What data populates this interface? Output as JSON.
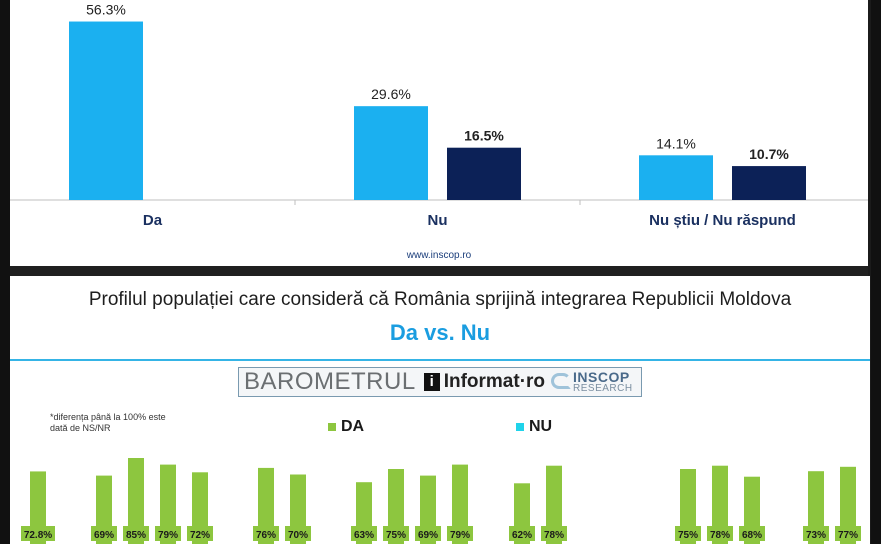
{
  "top_panel": {
    "source": "www.inscop.ro"
  },
  "bottom_panel": {
    "title": "Profilul populației care consideră că România sprijină integrarea Republicii Moldova",
    "subtitle": "Da vs. Nu",
    "banner": {
      "barometrul": "BAROMETRUL",
      "informat_icon": "i",
      "informat": "Informat·ro",
      "inscop_name": "INSCOP",
      "inscop_sub": "RESEARCH"
    },
    "note": "*diferența până la 100% este dată de NS/NR",
    "legend": [
      {
        "label": "DA",
        "color": "#8dc63f"
      },
      {
        "label": "NU",
        "color": "#1fd3ea"
      }
    ]
  },
  "colors": {
    "bar_light": "#1bb0f0",
    "bar_dark": "#0c2157",
    "bar_green": "#8dc63f",
    "label_bg": "#8dc63f"
  },
  "chart_data": [
    {
      "type": "bar",
      "categories": [
        "Da",
        "Nu",
        "Nu știu / Nu răspund"
      ],
      "series": [
        {
          "color": "#1bb0f0",
          "values": [
            56.3,
            29.6,
            14.1
          ],
          "labels": [
            "56.3%",
            "29.6%",
            "14.1%"
          ]
        },
        {
          "color": "#0c2157",
          "values": [
            null,
            16.5,
            10.7
          ],
          "labels": [
            "",
            "16.5%",
            "10.7%"
          ]
        }
      ],
      "ylim": [
        0,
        60
      ]
    },
    {
      "type": "bar",
      "title": "Profilul populației care consideră că România sprijină integrarea Republicii Moldova",
      "subtitle": "Da vs. Nu",
      "series_legend": [
        "DA",
        "NU"
      ],
      "groups": [
        {
          "bars": [
            {
              "value": 72.8,
              "label": "72.8%"
            }
          ]
        },
        {
          "bars": [
            {
              "value": 69,
              "label": "69%"
            },
            {
              "value": 85,
              "label": "85%"
            },
            {
              "value": 79,
              "label": "79%"
            },
            {
              "value": 72,
              "label": "72%"
            }
          ]
        },
        {
          "bars": [
            {
              "value": 76,
              "label": "76%"
            },
            {
              "value": 70,
              "label": "70%"
            }
          ]
        },
        {
          "bars": [
            {
              "value": 63,
              "label": "63%"
            },
            {
              "value": 75,
              "label": "75%"
            },
            {
              "value": 69,
              "label": "69%"
            },
            {
              "value": 79,
              "label": "79%"
            }
          ]
        },
        {
          "bars": [
            {
              "value": 62,
              "label": "62%"
            },
            {
              "value": 78,
              "label": "78%"
            },
            {
              "value": null,
              "label": ""
            }
          ]
        },
        {
          "bars": [
            {
              "value": null,
              "label": ""
            },
            {
              "value": 75,
              "label": "75%"
            },
            {
              "value": 78,
              "label": "78%"
            },
            {
              "value": 68,
              "label": "68%"
            }
          ]
        },
        {
          "bars": [
            {
              "value": 73,
              "label": "73%"
            },
            {
              "value": 77,
              "label": "77%"
            }
          ]
        }
      ]
    }
  ]
}
